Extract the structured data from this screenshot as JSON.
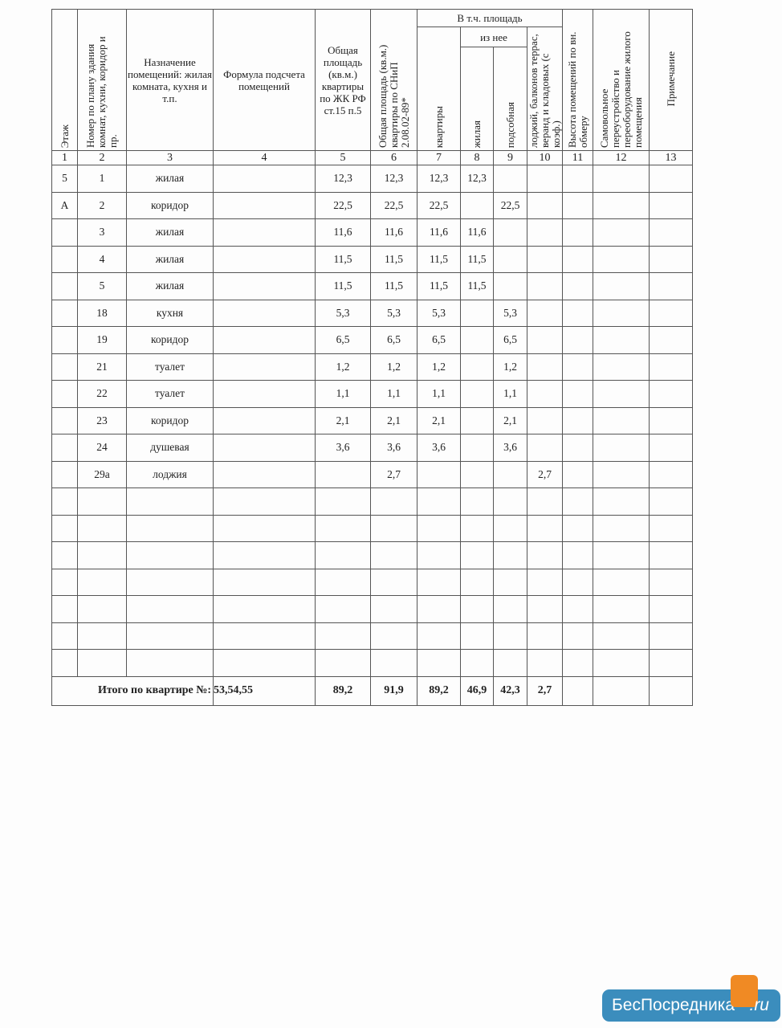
{
  "headers": {
    "h1": "Этаж",
    "h2": "Номер по плану здания комнат, кухни, коридор и пр.",
    "h3": "Назначение помещений: жилая комната, кухня и т.п.",
    "h4": "Формула подсчета помещений",
    "h5": "Общая площадь (кв.м.) квартиры по ЖК РФ ст.15 п.5",
    "h6": "Общая площадь (кв.м.) квартиры по СНиП 2.08.02-89*",
    "group": "В т.ч. площадь",
    "h7": "квартиры",
    "subgroup": "из нее",
    "h8": "жилая",
    "h9": "подсобная",
    "h10": "лоджий, балконов террас, веранд и кладовых (с коэф.)",
    "h11": "Высота помещений по вн. обмеру",
    "h12": "Самовольное переустройство и переоборудование жилого помещения",
    "h13": "Примечание"
  },
  "column_numbers": [
    "1",
    "2",
    "3",
    "4",
    "5",
    "6",
    "7",
    "8",
    "9",
    "10",
    "11",
    "12",
    "13"
  ],
  "rows": [
    [
      "5",
      "1",
      "жилая",
      "",
      "12,3",
      "12,3",
      "12,3",
      "12,3",
      "",
      "",
      "",
      "",
      ""
    ],
    [
      "А",
      "2",
      "коридор",
      "",
      "22,5",
      "22,5",
      "22,5",
      "",
      "22,5",
      "",
      "",
      "",
      ""
    ],
    [
      "",
      "3",
      "жилая",
      "",
      "11,6",
      "11,6",
      "11,6",
      "11,6",
      "",
      "",
      "",
      "",
      ""
    ],
    [
      "",
      "4",
      "жилая",
      "",
      "11,5",
      "11,5",
      "11,5",
      "11,5",
      "",
      "",
      "",
      "",
      ""
    ],
    [
      "",
      "5",
      "жилая",
      "",
      "11,5",
      "11,5",
      "11,5",
      "11,5",
      "",
      "",
      "",
      "",
      ""
    ],
    [
      "",
      "18",
      "кухня",
      "",
      "5,3",
      "5,3",
      "5,3",
      "",
      "5,3",
      "",
      "",
      "",
      ""
    ],
    [
      "",
      "19",
      "коридор",
      "",
      "6,5",
      "6,5",
      "6,5",
      "",
      "6,5",
      "",
      "",
      "",
      ""
    ],
    [
      "",
      "21",
      "туалет",
      "",
      "1,2",
      "1,2",
      "1,2",
      "",
      "1,2",
      "",
      "",
      "",
      ""
    ],
    [
      "",
      "22",
      "туалет",
      "",
      "1,1",
      "1,1",
      "1,1",
      "",
      "1,1",
      "",
      "",
      "",
      ""
    ],
    [
      "",
      "23",
      "коридор",
      "",
      "2,1",
      "2,1",
      "2,1",
      "",
      "2,1",
      "",
      "",
      "",
      ""
    ],
    [
      "",
      "24",
      "душевая",
      "",
      "3,6",
      "3,6",
      "3,6",
      "",
      "3,6",
      "",
      "",
      "",
      ""
    ],
    [
      "",
      "29а",
      "лоджия",
      "",
      "",
      "2,7",
      "",
      "",
      "",
      "2,7",
      "",
      "",
      ""
    ]
  ],
  "empty_rows": 7,
  "total": {
    "label": "Итого по квартире №:",
    "apartments": "53,54,55",
    "values": [
      "89,2",
      "91,9",
      "89,2",
      "46,9",
      "42,3",
      "2,7",
      "",
      "",
      ""
    ]
  },
  "watermark": {
    "text": "БесПосредника",
    ".ru": ".ru",
    "color": "#3b8dbd"
  }
}
